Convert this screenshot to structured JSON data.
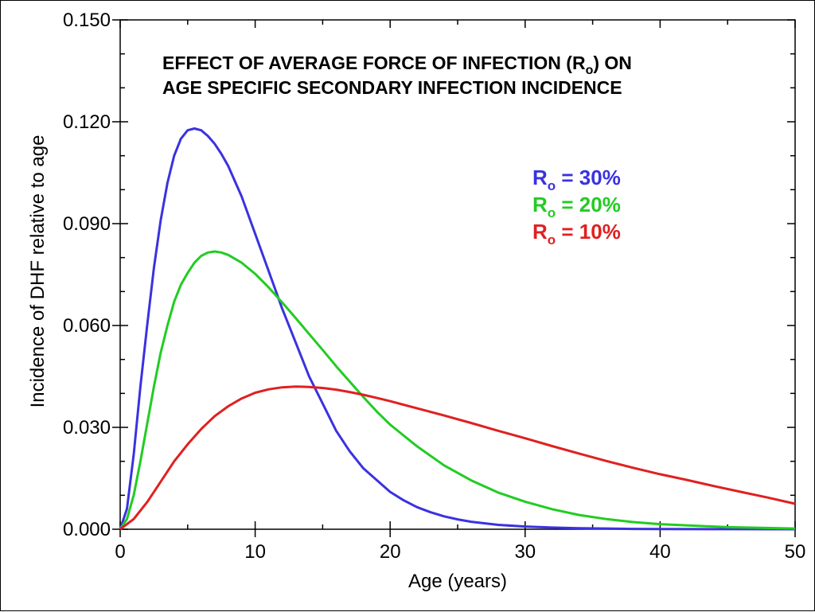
{
  "chart_data": {
    "type": "line",
    "title_lines": [
      {
        "pre": "EFFECT OF AVERAGE FORCE OF  INFECTION (R",
        "sub": "o",
        "post": ") ON"
      },
      {
        "pre": "AGE SPECIFIC SECONDARY INFECTION INCIDENCE",
        "sub": "",
        "post": ""
      }
    ],
    "xlabel": "Age (years)",
    "ylabel": "Incidence of DHF relative to age",
    "xlim": [
      0,
      50
    ],
    "ylim": [
      0,
      0.15
    ],
    "xticks": [
      0,
      10,
      20,
      30,
      40,
      50
    ],
    "xtick_labels": [
      "0",
      "10",
      "20",
      "30",
      "40",
      "50"
    ],
    "yticks": [
      0,
      0.03,
      0.06,
      0.09,
      0.12,
      0.15
    ],
    "ytick_labels": [
      "0.000",
      "0.030",
      "0.060",
      "0.090",
      "0.120",
      "0.150"
    ],
    "grid": false,
    "legend_position": "upper-right",
    "series": [
      {
        "name": "Ro = 30%",
        "label_main": "R",
        "label_sub": "o",
        "label_rest": " = 30%",
        "color": "#3a32e0",
        "x": [
          0,
          0.5,
          1,
          1.5,
          2,
          2.5,
          3,
          3.5,
          4,
          4.5,
          5,
          5.5,
          6,
          6.5,
          7,
          7.5,
          8,
          9,
          10,
          11,
          12,
          13,
          14,
          15,
          16,
          17,
          18,
          19,
          20,
          21,
          22,
          23,
          24,
          25,
          26,
          28,
          30,
          32,
          34,
          36,
          38,
          40,
          45,
          50
        ],
        "y": [
          0,
          0.006,
          0.022,
          0.042,
          0.06,
          0.077,
          0.091,
          0.102,
          0.11,
          0.115,
          0.1175,
          0.118,
          0.1175,
          0.1158,
          0.1135,
          0.1105,
          0.107,
          0.098,
          0.087,
          0.076,
          0.065,
          0.055,
          0.045,
          0.037,
          0.029,
          0.023,
          0.018,
          0.0145,
          0.011,
          0.0085,
          0.0065,
          0.005,
          0.0038,
          0.0029,
          0.0022,
          0.0013,
          0.0008,
          0.0005,
          0.0003,
          0.0002,
          0.0001,
          5e-05,
          2e-05,
          0
        ]
      },
      {
        "name": "Ro = 20%",
        "label_main": "R",
        "label_sub": "o",
        "label_rest": " = 20%",
        "color": "#22cc22",
        "x": [
          0,
          0.5,
          1,
          1.5,
          2,
          2.5,
          3,
          3.5,
          4,
          4.5,
          5,
          5.5,
          6,
          6.5,
          7,
          7.5,
          8,
          9,
          10,
          11,
          12,
          13,
          14,
          15,
          16,
          17,
          18,
          19,
          20,
          22,
          24,
          26,
          28,
          30,
          32,
          34,
          36,
          38,
          40,
          45,
          50
        ],
        "y": [
          0,
          0.003,
          0.01,
          0.02,
          0.031,
          0.042,
          0.052,
          0.06,
          0.067,
          0.072,
          0.0755,
          0.0785,
          0.0805,
          0.0815,
          0.0818,
          0.0815,
          0.0808,
          0.0785,
          0.0752,
          0.0712,
          0.0668,
          0.0622,
          0.0575,
          0.0528,
          0.048,
          0.0435,
          0.039,
          0.0347,
          0.0308,
          0.0244,
          0.0188,
          0.0144,
          0.0108,
          0.0081,
          0.0059,
          0.0042,
          0.003,
          0.0021,
          0.0015,
          0.0006,
          0.0002
        ]
      },
      {
        "name": "Ro = 10%",
        "label_main": "R",
        "label_sub": "o",
        "label_rest": " = 10%",
        "color": "#e02020",
        "x": [
          0,
          1,
          2,
          3,
          4,
          5,
          6,
          7,
          8,
          9,
          10,
          11,
          12,
          13,
          14,
          15,
          16,
          17,
          18,
          19,
          20,
          22,
          24,
          26,
          28,
          30,
          32,
          34,
          36,
          38,
          40,
          42,
          44,
          46,
          48,
          50
        ],
        "y": [
          0,
          0.003,
          0.008,
          0.014,
          0.02,
          0.025,
          0.0295,
          0.0333,
          0.0362,
          0.0385,
          0.0402,
          0.0412,
          0.0418,
          0.042,
          0.0419,
          0.0416,
          0.0411,
          0.0404,
          0.0396,
          0.0387,
          0.0377,
          0.0356,
          0.0335,
          0.0313,
          0.029,
          0.0268,
          0.0245,
          0.0223,
          0.0201,
          0.0181,
          0.0162,
          0.0145,
          0.0127,
          0.011,
          0.0093,
          0.0075
        ]
      }
    ]
  }
}
